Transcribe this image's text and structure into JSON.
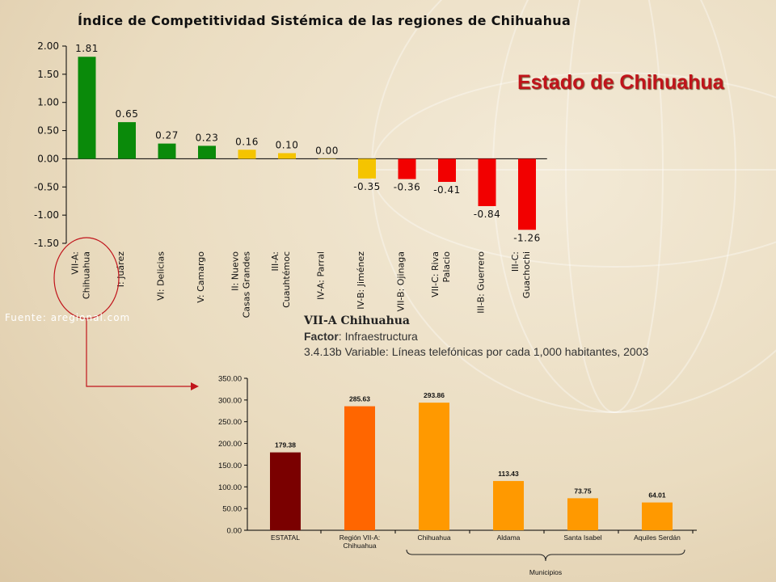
{
  "main_title": "Índice de Competitividad Sistémica de las regiones de Chihuahua",
  "state_title": "Estado de Chihuahua",
  "source_note": "Fuente: aregional.com",
  "variable_block": {
    "region": "VII-A Chihuahua",
    "factor_label": "Factor",
    "factor_value": ": Infraestructura",
    "variable": "3.4.13b Variable: Líneas telefónicas por cada 1,000 habitantes, 2003"
  },
  "colors": {
    "title_red": "#c0141b",
    "bar_green": "#0a8a0a",
    "bar_yellow": "#f5c400",
    "bar_red": "#f20000",
    "bar_dark_red": "#7a0000",
    "bar_orange_dark": "#ff6600",
    "bar_orange": "#ff9900",
    "connector": "#c0141b"
  },
  "chart_data": [
    {
      "type": "bar",
      "title": "Índice de Competitividad Sistémica de las regiones de Chihuahua",
      "categories": [
        [
          "VII-A:",
          "Chihuahua"
        ],
        [
          "I: Juárez"
        ],
        [
          "VI: Delicias"
        ],
        [
          "V: Camargo"
        ],
        [
          "II: Nuevo",
          "Casas Grandes"
        ],
        [
          "III-A:",
          "Cuauhtémoc"
        ],
        [
          "IV-A: Parral"
        ],
        [
          "IV-B: Jiménez"
        ],
        [
          "VII-B: Ojinaga"
        ],
        [
          "VII-C: Riva",
          "Palacio"
        ],
        [
          "III-B: Guerrero"
        ],
        [
          "III-C:",
          "Guachochi"
        ]
      ],
      "values": [
        1.81,
        0.65,
        0.27,
        0.23,
        0.16,
        0.1,
        0.0,
        -0.35,
        -0.36,
        -0.41,
        -0.84,
        -1.26
      ],
      "value_labels": [
        "1.81",
        "0.65",
        "0.27",
        "0.23",
        "0.16",
        "0.10",
        "0.00",
        "-0.35",
        "-0.36",
        "-0.41",
        "-0.84",
        "-1.26"
      ],
      "bar_colors": [
        "green",
        "green",
        "green",
        "green",
        "yellow",
        "yellow",
        "yellow",
        "yellow",
        "red",
        "red",
        "red",
        "red"
      ],
      "yticks": [
        "2.00",
        "1.50",
        "1.00",
        "0.50",
        "0.00",
        "-0.50",
        "-1.00",
        "-1.50"
      ],
      "ylim": [
        -1.5,
        2.0
      ],
      "grid": false,
      "highlight_category": "VII-A: Chihuahua"
    },
    {
      "type": "bar",
      "categories": [
        [
          "ESTATAL"
        ],
        [
          "Región VII-A:",
          "Chihuahua"
        ],
        [
          "Chihuahua"
        ],
        [
          "Aldama"
        ],
        [
          "Santa Isabel"
        ],
        [
          "Aquiles Serdán"
        ]
      ],
      "values": [
        179.38,
        285.63,
        293.86,
        113.43,
        73.75,
        64.01
      ],
      "value_labels": [
        "179.38",
        "285.63",
        "293.86",
        "113.43",
        "73.75",
        "64.01"
      ],
      "bar_colors": [
        "dark_red",
        "orange_dark",
        "orange",
        "orange",
        "orange",
        "orange"
      ],
      "yticks": [
        "350.00",
        "300.00",
        "250.00",
        "200.00",
        "150.00",
        "100.00",
        "50.00",
        "0.00"
      ],
      "ylim": [
        0,
        350
      ],
      "grid": false,
      "bracket_label": "Municipios"
    }
  ]
}
